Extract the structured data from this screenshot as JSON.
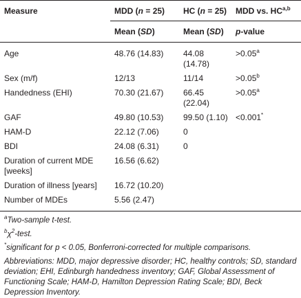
{
  "table": {
    "header": {
      "row1": [
        "Measure",
        [
          "MDD (",
          "n",
          " = 25)"
        ],
        [
          "HC (",
          "n",
          " = 25)"
        ],
        [
          "MDD vs. HC",
          "a,b"
        ]
      ],
      "row2": [
        [
          "Mean (",
          "SD",
          ")"
        ],
        [
          "Mean (",
          "SD",
          ")"
        ],
        [
          "p",
          "-value"
        ]
      ]
    },
    "rows": [
      [
        "Age",
        "48.76 (14.83)",
        "44.08 (14.78)",
        [
          ">0.05",
          "a"
        ]
      ],
      [
        "Sex (m/f)",
        "12/13",
        "11/14",
        [
          ">0.05",
          "b"
        ]
      ],
      [
        "Handedness (EHI)",
        "70.30 (21.67)",
        "66.45 (22.04)",
        [
          ">0.05",
          "a"
        ]
      ],
      [
        "GAF",
        "49.80 (10.53)",
        "99.50 (1.10)",
        [
          "<0.001",
          "*"
        ]
      ],
      [
        "HAM-D",
        "22.12 (7.06)",
        "0"
      ],
      [
        "BDI",
        "24.08 (6.31)",
        "0"
      ],
      [
        "Duration of current MDE [weeks]",
        "16.56 (6.62)"
      ],
      [
        "Duration of illness [years]",
        "16.72 (10.20)"
      ],
      [
        "Number of MDEs",
        "5.56 (2.47)"
      ]
    ]
  },
  "footnotes": [
    [
      "a",
      "Two-sample t-test."
    ],
    [
      "b",
      "χ",
      "2",
      "-test."
    ],
    [
      "*",
      "significant for ",
      "p",
      " < 0.05, Bonferroni-corrected for multiple comparisons."
    ],
    [
      "Abbreviations: MDD, major depressive disorder; HC, healthy controls; SD, standard deviation; EHI, Edinburgh handedness inventory; GAF, Global Assessment of Functioning Scale; HAM-D, Hamilton Depression Rating Scale; BDI, Beck Depression Inventory."
    ]
  ]
}
